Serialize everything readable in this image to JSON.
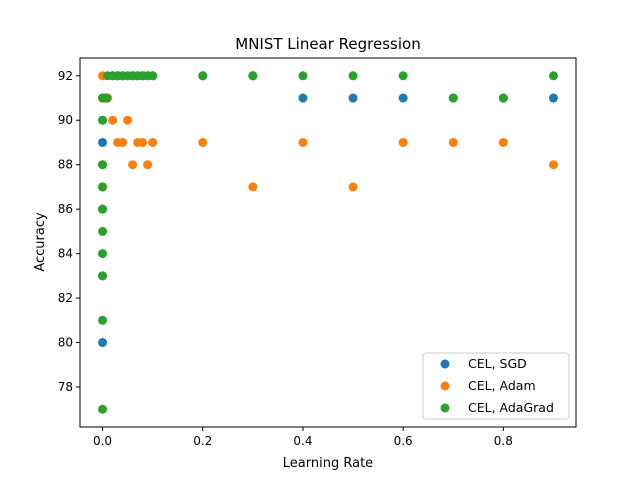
{
  "chart_data": {
    "type": "scatter",
    "title": "MNIST Linear Regression",
    "xlabel": "Learning Rate",
    "ylabel": "Accuracy",
    "xlim": [
      -0.045,
      0.945
    ],
    "ylim": [
      76.2,
      92.8
    ],
    "xticks": [
      0.0,
      0.2,
      0.4,
      0.6,
      0.8
    ],
    "xtick_labels": [
      "0.0",
      "0.2",
      "0.4",
      "0.6",
      "0.8"
    ],
    "yticks": [
      78,
      80,
      82,
      84,
      86,
      88,
      90,
      92
    ],
    "ytick_labels": [
      "78",
      "80",
      "82",
      "84",
      "86",
      "88",
      "90",
      "92"
    ],
    "grid": false,
    "legend_position": "lower-right",
    "series": [
      {
        "name": "CEL, SGD",
        "color": "#1f77b4",
        "points": [
          [
            0.0,
            80
          ],
          [
            0.0,
            83
          ],
          [
            0.0,
            86
          ],
          [
            0.0,
            87
          ],
          [
            0.0,
            88
          ],
          [
            0.0,
            89
          ],
          [
            0.0,
            90
          ],
          [
            0.0,
            91
          ],
          [
            0.005,
            91
          ],
          [
            0.01,
            91
          ],
          [
            0.02,
            92
          ],
          [
            0.03,
            92
          ],
          [
            0.04,
            92
          ],
          [
            0.05,
            92
          ],
          [
            0.06,
            92
          ],
          [
            0.07,
            92
          ],
          [
            0.08,
            92
          ],
          [
            0.09,
            92
          ],
          [
            0.1,
            92
          ],
          [
            0.2,
            92
          ],
          [
            0.3,
            92
          ],
          [
            0.4,
            91
          ],
          [
            0.5,
            91
          ],
          [
            0.6,
            91
          ],
          [
            0.7,
            91
          ],
          [
            0.8,
            91
          ],
          [
            0.9,
            91
          ]
        ]
      },
      {
        "name": "CEL, Adam",
        "color": "#ff7f0e",
        "points": [
          [
            0.0,
            92
          ],
          [
            0.0,
            91
          ],
          [
            0.0,
            88
          ],
          [
            0.0,
            87
          ],
          [
            0.005,
            91
          ],
          [
            0.01,
            91
          ],
          [
            0.02,
            90
          ],
          [
            0.03,
            89
          ],
          [
            0.04,
            89
          ],
          [
            0.05,
            90
          ],
          [
            0.06,
            88
          ],
          [
            0.07,
            89
          ],
          [
            0.08,
            89
          ],
          [
            0.09,
            88
          ],
          [
            0.1,
            89
          ],
          [
            0.2,
            89
          ],
          [
            0.3,
            87
          ],
          [
            0.4,
            89
          ],
          [
            0.5,
            87
          ],
          [
            0.6,
            89
          ],
          [
            0.7,
            89
          ],
          [
            0.8,
            89
          ],
          [
            0.9,
            88
          ]
        ]
      },
      {
        "name": "CEL, AdaGrad",
        "color": "#2ca02c",
        "points": [
          [
            0.0,
            77
          ],
          [
            0.0,
            81
          ],
          [
            0.0,
            83
          ],
          [
            0.0,
            84
          ],
          [
            0.0,
            85
          ],
          [
            0.0,
            86
          ],
          [
            0.0,
            87
          ],
          [
            0.0,
            88
          ],
          [
            0.0,
            90
          ],
          [
            0.0,
            91
          ],
          [
            0.005,
            91
          ],
          [
            0.008,
            91
          ],
          [
            0.01,
            92
          ],
          [
            0.02,
            92
          ],
          [
            0.03,
            92
          ],
          [
            0.04,
            92
          ],
          [
            0.05,
            92
          ],
          [
            0.06,
            92
          ],
          [
            0.07,
            92
          ],
          [
            0.08,
            92
          ],
          [
            0.09,
            92
          ],
          [
            0.1,
            92
          ],
          [
            0.2,
            92
          ],
          [
            0.3,
            92
          ],
          [
            0.4,
            92
          ],
          [
            0.5,
            92
          ],
          [
            0.6,
            92
          ],
          [
            0.7,
            91
          ],
          [
            0.8,
            91
          ],
          [
            0.9,
            92
          ]
        ]
      }
    ]
  }
}
